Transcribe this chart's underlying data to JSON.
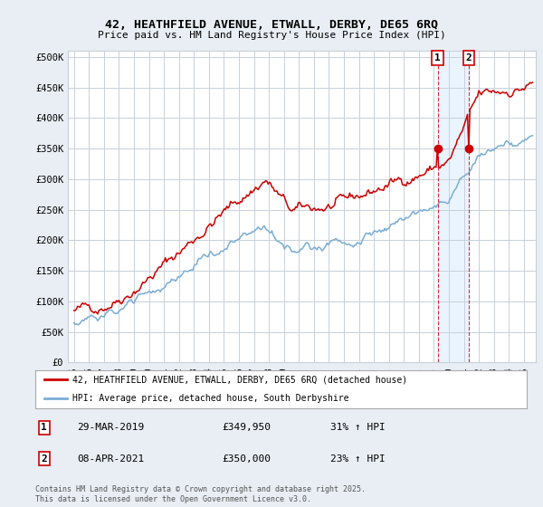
{
  "title_line1": "42, HEATHFIELD AVENUE, ETWALL, DERBY, DE65 6RQ",
  "title_line2": "Price paid vs. HM Land Registry's House Price Index (HPI)",
  "ylabel_ticks": [
    "£0",
    "£50K",
    "£100K",
    "£150K",
    "£200K",
    "£250K",
    "£300K",
    "£350K",
    "£400K",
    "£450K",
    "£500K"
  ],
  "ytick_values": [
    0,
    50000,
    100000,
    150000,
    200000,
    250000,
    300000,
    350000,
    400000,
    450000,
    500000
  ],
  "ylim": [
    0,
    510000
  ],
  "color_red": "#cc0000",
  "color_blue": "#7aadd4",
  "color_shade": "#ddeeff",
  "marker1_date": "29-MAR-2019",
  "marker1_price": 349950,
  "marker1_hpi": "31% ↑ HPI",
  "marker1_label": "1",
  "marker2_date": "08-APR-2021",
  "marker2_price": 350000,
  "marker2_hpi": "23% ↑ HPI",
  "marker2_label": "2",
  "legend_label1": "42, HEATHFIELD AVENUE, ETWALL, DERBY, DE65 6RQ (detached house)",
  "legend_label2": "HPI: Average price, detached house, South Derbyshire",
  "footer": "Contains HM Land Registry data © Crown copyright and database right 2025.\nThis data is licensed under the Open Government Licence v3.0.",
  "background_color": "#e8eef4",
  "plot_bg_color": "#e8eef4",
  "grid_color": "#c8d0da"
}
